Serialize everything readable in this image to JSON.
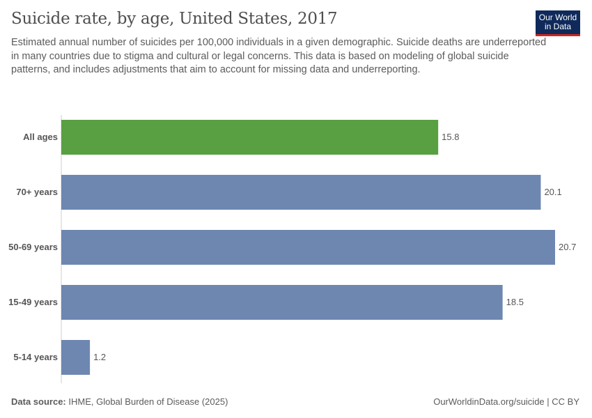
{
  "header": {
    "title": "Suicide rate, by age, United States, 2017",
    "subtitle_lines": [
      "Estimated annual number of suicides per 100,000 individuals in a given demographic. Suicide deaths are underreported",
      "in many countries due to stigma and cultural or legal concerns. This data is based on modeling of global suicide",
      "patterns, and includes adjustments that aim to account for missing data and underreporting."
    ],
    "logo": "Our World in Data"
  },
  "chart_data": {
    "type": "bar",
    "orientation": "horizontal",
    "title": "Suicide rate, by age, United States, 2017",
    "categories": [
      "All ages",
      "70+ years",
      "50-69 years",
      "15-49 years",
      "5-14 years"
    ],
    "values": [
      15.8,
      20.1,
      20.7,
      18.5,
      1.2
    ],
    "colors": [
      "#58a041",
      "#6d87b1",
      "#6d87b1",
      "#6d87b1",
      "#6d87b1"
    ],
    "xlim": [
      0,
      20.7
    ],
    "grid": false,
    "legend": "none"
  },
  "footer": {
    "source_label": "Data source:",
    "source": "IHME, Global Burden of Disease (2025)",
    "link": "OurWorldinData.org/suicide | CC BY"
  }
}
